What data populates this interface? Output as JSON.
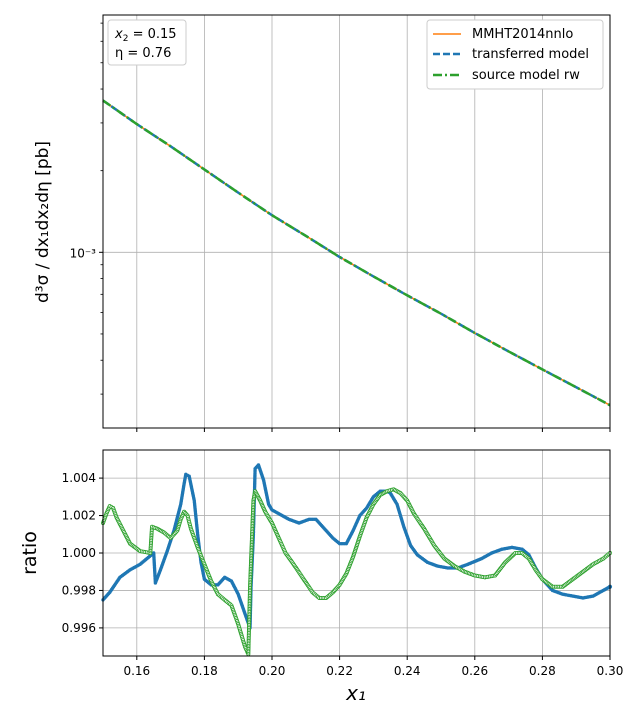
{
  "chart_data": [
    {
      "type": "line",
      "panel": "top",
      "xlim": [
        0.15,
        0.3
      ],
      "ylim": [
        0.000225,
        0.0075
      ],
      "yscale": "log",
      "ylabel": "d³σ / dx₁dx₂dη [pb]",
      "yticks": [
        {
          "value": 0.001,
          "label": "10⁻³"
        }
      ],
      "grid": true,
      "legend_position": "top-right",
      "annotation": {
        "line1_sym": "x",
        "line1_sub": "2",
        "line1_val": " = 0.15",
        "line2": "η = 0.76"
      },
      "series": [
        {
          "name": "MMHT2014nnlo",
          "color": "#ff7f0e",
          "style": "solid"
        },
        {
          "name": "transferred model",
          "color": "#1f77b4",
          "style": "dashed"
        },
        {
          "name": "source model rw",
          "color": "#2ca02c",
          "style": "dashdot"
        }
      ],
      "x": [
        0.15,
        0.16,
        0.17,
        0.18,
        0.19,
        0.2,
        0.21,
        0.22,
        0.23,
        0.24,
        0.25,
        0.26,
        0.27,
        0.28,
        0.29,
        0.3
      ],
      "y": [
        0.00363,
        0.00297,
        0.00246,
        0.00202,
        0.00166,
        0.00137,
        0.00115,
        0.000961,
        0.000815,
        0.000694,
        0.000594,
        0.000504,
        0.000431,
        0.00037,
        0.000318,
        0.000273
      ]
    },
    {
      "type": "scatter",
      "panel": "bottom",
      "xlabel": "x₁",
      "ylabel": "ratio",
      "xlim": [
        0.15,
        0.3
      ],
      "ylim": [
        0.9945,
        1.0055
      ],
      "xticks": [
        "0.16",
        "0.18",
        "0.20",
        "0.22",
        "0.24",
        "0.26",
        "0.28",
        "0.30"
      ],
      "yticks": [
        "0.996",
        "0.998",
        "1.000",
        "1.002",
        "1.004"
      ],
      "grid": true,
      "series": [
        {
          "name": "transferred model",
          "color": "#1f77b4",
          "marker": "filled",
          "points": [
            [
              0.15,
              0.9975
            ],
            [
              0.152,
              0.9979
            ],
            [
              0.155,
              0.9987
            ],
            [
              0.158,
              0.9991
            ],
            [
              0.161,
              0.9994
            ],
            [
              0.163,
              0.9997
            ],
            [
              0.165,
              1.0
            ],
            [
              0.1655,
              0.9984
            ],
            [
              0.167,
              0.9991
            ],
            [
              0.169,
              1.0001
            ],
            [
              0.171,
              1.0012
            ],
            [
              0.173,
              1.0026
            ],
            [
              0.174,
              1.0037
            ],
            [
              0.1745,
              1.0042
            ],
            [
              0.1755,
              1.0041
            ],
            [
              0.177,
              1.0028
            ],
            [
              0.178,
              1.001
            ],
            [
              0.179,
              0.9995
            ],
            [
              0.18,
              0.9986
            ],
            [
              0.182,
              0.9983
            ],
            [
              0.184,
              0.9983
            ],
            [
              0.186,
              0.9987
            ],
            [
              0.188,
              0.9985
            ],
            [
              0.19,
              0.9978
            ],
            [
              0.1925,
              0.9965
            ],
            [
              0.1935,
              0.996
            ],
            [
              0.1938,
              0.9982
            ],
            [
              0.1945,
              1.001
            ],
            [
              0.195,
              1.0045
            ],
            [
              0.196,
              1.0047
            ],
            [
              0.1975,
              1.0039
            ],
            [
              0.199,
              1.0026
            ],
            [
              0.2,
              1.0023
            ],
            [
              0.202,
              1.0021
            ],
            [
              0.205,
              1.0018
            ],
            [
              0.208,
              1.0016
            ],
            [
              0.211,
              1.0018
            ],
            [
              0.213,
              1.0018
            ],
            [
              0.215,
              1.0014
            ],
            [
              0.218,
              1.0008
            ],
            [
              0.22,
              1.0005
            ],
            [
              0.222,
              1.0005
            ],
            [
              0.224,
              1.0012
            ],
            [
              0.226,
              1.002
            ],
            [
              0.228,
              1.0024
            ],
            [
              0.23,
              1.003
            ],
            [
              0.232,
              1.0033
            ],
            [
              0.234,
              1.0033
            ],
            [
              0.235,
              1.0032
            ],
            [
              0.237,
              1.0026
            ],
            [
              0.239,
              1.0014
            ],
            [
              0.241,
              1.0004
            ],
            [
              0.243,
              0.9999
            ],
            [
              0.246,
              0.9995
            ],
            [
              0.249,
              0.9993
            ],
            [
              0.252,
              0.9992
            ],
            [
              0.255,
              0.9992
            ],
            [
              0.258,
              0.9994
            ],
            [
              0.262,
              0.9997
            ],
            [
              0.265,
              1.0
            ],
            [
              0.268,
              1.0002
            ],
            [
              0.271,
              1.0003
            ],
            [
              0.274,
              1.0002
            ],
            [
              0.276,
              0.9999
            ],
            [
              0.278,
              0.9992
            ],
            [
              0.28,
              0.9986
            ],
            [
              0.283,
              0.998
            ],
            [
              0.286,
              0.9978
            ],
            [
              0.289,
              0.9977
            ],
            [
              0.292,
              0.9976
            ],
            [
              0.295,
              0.9977
            ],
            [
              0.298,
              0.998
            ],
            [
              0.3,
              0.9982
            ]
          ]
        },
        {
          "name": "source model rw",
          "color": "#2ca02c",
          "marker": "open",
          "points": [
            [
              0.15,
              1.0016
            ],
            [
              0.151,
              1.0021
            ],
            [
              0.152,
              1.0025
            ],
            [
              0.153,
              1.0024
            ],
            [
              0.154,
              1.0019
            ],
            [
              0.156,
              1.0012
            ],
            [
              0.158,
              1.0005
            ],
            [
              0.161,
              1.0001
            ],
            [
              0.164,
              1.0
            ],
            [
              0.1645,
              1.0014
            ],
            [
              0.166,
              1.0013
            ],
            [
              0.168,
              1.0011
            ],
            [
              0.17,
              1.0008
            ],
            [
              0.172,
              1.0012
            ],
            [
              0.173,
              1.0018
            ],
            [
              0.174,
              1.0022
            ],
            [
              0.175,
              1.002
            ],
            [
              0.176,
              1.0013
            ],
            [
              0.178,
              1.0003
            ],
            [
              0.18,
              0.9994
            ],
            [
              0.182,
              0.9985
            ],
            [
              0.184,
              0.9978
            ],
            [
              0.186,
              0.9975
            ],
            [
              0.188,
              0.9972
            ],
            [
              0.19,
              0.9962
            ],
            [
              0.191,
              0.9956
            ],
            [
              0.192,
              0.995
            ],
            [
              0.193,
              0.9946
            ],
            [
              0.1935,
              0.9982
            ],
            [
              0.1945,
              1.0028
            ],
            [
              0.195,
              1.0033
            ],
            [
              0.1965,
              1.0028
            ],
            [
              0.198,
              1.0022
            ],
            [
              0.2,
              1.0016
            ],
            [
              0.202,
              1.0008
            ],
            [
              0.204,
              1.0
            ],
            [
              0.206,
              0.9995
            ],
            [
              0.209,
              0.9987
            ],
            [
              0.212,
              0.9979
            ],
            [
              0.214,
              0.9976
            ],
            [
              0.216,
              0.9976
            ],
            [
              0.218,
              0.9979
            ],
            [
              0.22,
              0.9983
            ],
            [
              0.222,
              0.9989
            ],
            [
              0.224,
              0.9998
            ],
            [
              0.226,
              1.0009
            ],
            [
              0.228,
              1.0019
            ],
            [
              0.23,
              1.0026
            ],
            [
              0.232,
              1.0031
            ],
            [
              0.234,
              1.0033
            ],
            [
              0.236,
              1.0034
            ],
            [
              0.238,
              1.0032
            ],
            [
              0.24,
              1.0028
            ],
            [
              0.242,
              1.0021
            ],
            [
              0.245,
              1.0013
            ],
            [
              0.248,
              1.0004
            ],
            [
              0.251,
              0.9997
            ],
            [
              0.254,
              0.9993
            ],
            [
              0.257,
              0.999
            ],
            [
              0.26,
              0.9988
            ],
            [
              0.263,
              0.9987
            ],
            [
              0.266,
              0.9988
            ],
            [
              0.269,
              0.9995
            ],
            [
              0.272,
              1.0
            ],
            [
              0.274,
              1.0
            ],
            [
              0.276,
              0.9997
            ],
            [
              0.278,
              0.9991
            ],
            [
              0.28,
              0.9986
            ],
            [
              0.283,
              0.9982
            ],
            [
              0.286,
              0.9982
            ],
            [
              0.289,
              0.9986
            ],
            [
              0.292,
              0.999
            ],
            [
              0.295,
              0.9994
            ],
            [
              0.298,
              0.9997
            ],
            [
              0.3,
              1.0
            ]
          ]
        }
      ]
    }
  ]
}
